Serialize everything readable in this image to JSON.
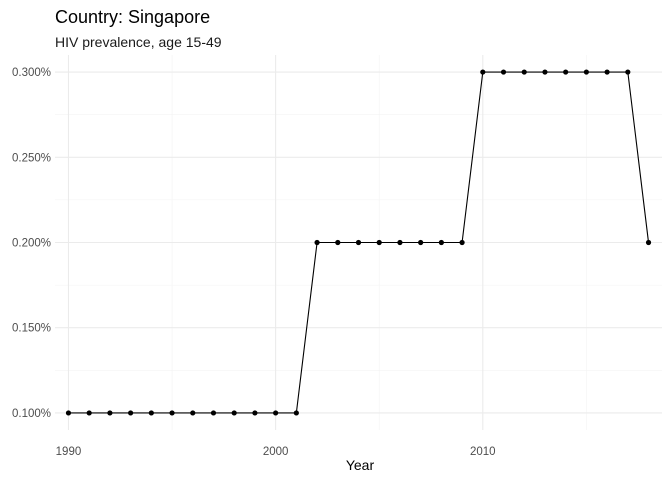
{
  "chart_data": {
    "type": "line",
    "title": "Country: Singapore",
    "subtitle": "HIV prevalence, age 15-49",
    "xlabel": "Year",
    "ylabel": "",
    "xlim": [
      1989.35,
      2018.65
    ],
    "ylim": [
      0.09,
      0.31
    ],
    "x_ticks": [
      1990,
      2000,
      2010
    ],
    "x_tick_labels": [
      "1990",
      "2000",
      "2010"
    ],
    "y_ticks": [
      0.1,
      0.15,
      0.2,
      0.25,
      0.3
    ],
    "y_tick_labels": [
      "0.100%",
      "0.150%",
      "0.200%",
      "0.250%",
      "0.300%"
    ],
    "grid": true,
    "legend": "none",
    "series": [
      {
        "color": "#000000",
        "x": [
          1990,
          1991,
          1992,
          1993,
          1994,
          1995,
          1996,
          1997,
          1998,
          1999,
          2000,
          2001,
          2002,
          2003,
          2004,
          2005,
          2006,
          2007,
          2008,
          2009,
          2010,
          2011,
          2012,
          2013,
          2014,
          2015,
          2016,
          2017,
          2018
        ],
        "y": [
          0.1,
          0.1,
          0.1,
          0.1,
          0.1,
          0.1,
          0.1,
          0.1,
          0.1,
          0.1,
          0.1,
          0.1,
          0.2,
          0.2,
          0.2,
          0.2,
          0.2,
          0.2,
          0.2,
          0.2,
          0.3,
          0.3,
          0.3,
          0.3,
          0.3,
          0.3,
          0.3,
          0.3,
          0.2
        ]
      }
    ]
  }
}
